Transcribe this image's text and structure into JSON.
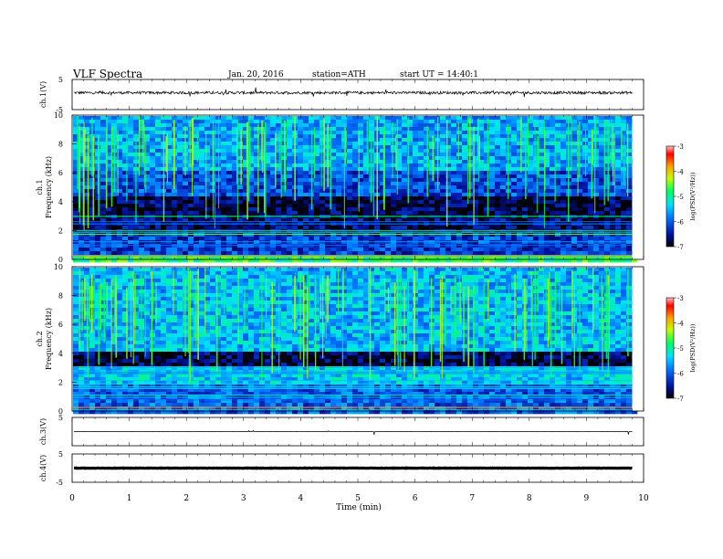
{
  "header": {
    "title": "VLF Spectra",
    "date": "Jan. 20, 2016",
    "station": "station=ATH",
    "start": "start UT = 14:40:1"
  },
  "chart_data": [
    {
      "type": "line",
      "panel": "ch1-waveform",
      "ylabel": "ch.1(V)",
      "ylim": [
        -5,
        5
      ],
      "yticks": [
        "5",
        "-5"
      ],
      "baseline": 0.6
    },
    {
      "type": "heatmap",
      "panel": "ch1-spectrogram",
      "ylabel_top": "ch.1",
      "ylabel": "Frequency (kHz)",
      "ylim": [
        0,
        10
      ],
      "yticks": [
        "0",
        "2",
        "4",
        "6",
        "8",
        "10"
      ],
      "colorbar": {
        "label": "log(PSD(V²/Hz))",
        "range": [
          -7,
          -3
        ],
        "ticks": [
          "-3",
          "-4",
          "-5",
          "-6",
          "-7"
        ]
      },
      "bands": [
        {
          "from": 0.0,
          "to": 0.5,
          "level": -4.8
        },
        {
          "from": 0.5,
          "to": 2.0,
          "level": -6.2
        },
        {
          "from": 2.0,
          "to": 3.3,
          "level": -6.7
        },
        {
          "from": 3.3,
          "to": 4.6,
          "level": -6.8
        },
        {
          "from": 4.6,
          "to": 6.2,
          "level": -6.1
        },
        {
          "from": 6.2,
          "to": 10.0,
          "level": -5.6
        }
      ]
    },
    {
      "type": "heatmap",
      "panel": "ch2-spectrogram",
      "ylabel_top": "ch.2",
      "ylabel": "Frequency (kHz)",
      "ylim": [
        0,
        10
      ],
      "yticks": [
        "0",
        "2",
        "4",
        "6",
        "8",
        "10"
      ],
      "colorbar": {
        "label": "log(PSD(V²/Hz))",
        "range": [
          -7,
          -3
        ],
        "ticks": [
          "-3",
          "-4",
          "-5",
          "-6",
          "-7"
        ]
      },
      "bands": [
        {
          "from": 0.0,
          "to": 0.6,
          "level": -6.0
        },
        {
          "from": 0.6,
          "to": 2.0,
          "level": -6.0
        },
        {
          "from": 2.0,
          "to": 3.2,
          "level": -5.4
        },
        {
          "from": 3.2,
          "to": 4.2,
          "level": -6.8
        },
        {
          "from": 4.2,
          "to": 10.0,
          "level": -5.5
        }
      ]
    },
    {
      "type": "line",
      "panel": "ch3-waveform",
      "ylabel": "ch.3(V)",
      "ylim": [
        -5,
        5
      ],
      "yticks": [
        "5"
      ],
      "baseline": 0.0
    },
    {
      "type": "line",
      "panel": "ch4-waveform",
      "ylabel": "ch.4(V)",
      "ylim": [
        -5,
        5
      ],
      "yticks": [
        "5",
        "-5"
      ],
      "baseline": 0.0
    }
  ],
  "xaxis": {
    "label": "Time (min)",
    "range": [
      0,
      10
    ],
    "ticks": [
      "0",
      "1",
      "2",
      "3",
      "4",
      "5",
      "6",
      "7",
      "8",
      "9",
      "10"
    ],
    "data_end": 9.8
  }
}
